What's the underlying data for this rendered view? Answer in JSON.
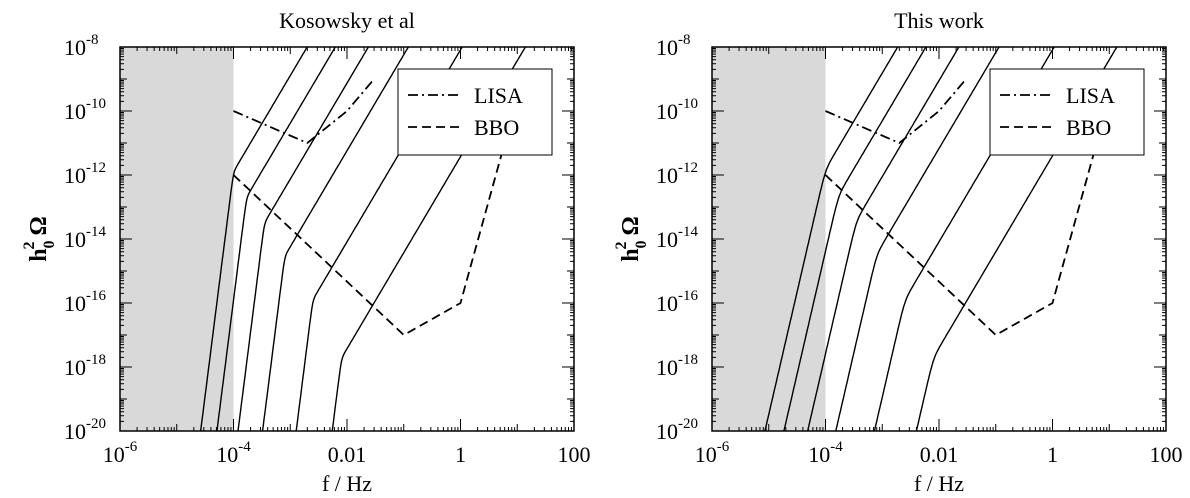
{
  "chart_data": [
    {
      "type": "line",
      "title": "Kosowsky et al",
      "xlabel": "f / Hz",
      "ylabel": "h_0^2 Ω",
      "xscale": "log",
      "yscale": "log",
      "xlim": [
        1e-06,
        100
      ],
      "ylim": [
        1e-20,
        1e-08
      ],
      "x_tick_labels": [
        {
          "base": "10",
          "exp": "-6"
        },
        {
          "base": "10",
          "exp": "-4"
        },
        {
          "base": "0.01",
          "exp": ""
        },
        {
          "base": "1",
          "exp": ""
        },
        {
          "base": "100",
          "exp": ""
        }
      ],
      "y_tick_labels": [
        {
          "base": "10",
          "exp": "-20"
        },
        {
          "base": "10",
          "exp": "-18"
        },
        {
          "base": "10",
          "exp": "-16"
        },
        {
          "base": "10",
          "exp": "-14"
        },
        {
          "base": "10",
          "exp": "-12"
        },
        {
          "base": "10",
          "exp": "-10"
        },
        {
          "base": "10",
          "exp": "-8"
        }
      ],
      "shaded_region": {
        "x": [
          1e-06,
          0.0001
        ],
        "color": "#d9d9d9"
      },
      "legend": {
        "position": "top-right",
        "entries": [
          {
            "label": "LISA",
            "dash": "dashdot"
          },
          {
            "label": "BBO",
            "dash": "dashed"
          }
        ]
      },
      "sensitivity_curves": [
        {
          "name": "LISA",
          "dash": "dashdot",
          "points": [
            [
              0.0001,
              1e-10
            ],
            [
              0.002,
              1e-11
            ],
            [
              0.01,
              1e-10
            ],
            [
              0.03,
              1e-09
            ]
          ]
        },
        {
          "name": "BBO",
          "dash": "dashed",
          "points": [
            [
              0.0001,
              1e-12
            ],
            [
              0.1,
              1e-17
            ],
            [
              1,
              1e-16
            ],
            [
              6,
              1e-11
            ]
          ]
        }
      ],
      "spectra": {
        "low_slope": 3,
        "high_slope": -8,
        "knee_width": 0.35,
        "peaks": [
          {
            "f": 0.0001,
            "amp": 1e-12
          },
          {
            "f": 0.00017,
            "amp": 1.6e-13
          },
          {
            "f": 0.00035,
            "amp": 2.5e-14
          },
          {
            "f": 0.0008,
            "amp": 2.3e-15
          },
          {
            "f": 0.0025,
            "amp": 1e-16
          },
          {
            "f": 0.008,
            "amp": 1.5e-18
          }
        ]
      }
    },
    {
      "type": "line",
      "title": "This work",
      "xlabel": "f / Hz",
      "ylabel": "h_0^2 Ω",
      "xscale": "log",
      "yscale": "log",
      "xlim": [
        1e-06,
        100
      ],
      "ylim": [
        1e-20,
        1e-08
      ],
      "x_tick_labels": [
        {
          "base": "10",
          "exp": "-6"
        },
        {
          "base": "10",
          "exp": "-4"
        },
        {
          "base": "0.01",
          "exp": ""
        },
        {
          "base": "1",
          "exp": ""
        },
        {
          "base": "100",
          "exp": ""
        }
      ],
      "y_tick_labels": [
        {
          "base": "10",
          "exp": "-20"
        },
        {
          "base": "10",
          "exp": "-18"
        },
        {
          "base": "10",
          "exp": "-16"
        },
        {
          "base": "10",
          "exp": "-14"
        },
        {
          "base": "10",
          "exp": "-12"
        },
        {
          "base": "10",
          "exp": "-10"
        },
        {
          "base": "10",
          "exp": "-8"
        }
      ],
      "shaded_region": {
        "x": [
          1e-06,
          0.0001
        ],
        "color": "#d9d9d9"
      },
      "legend": {
        "position": "top-right",
        "entries": [
          {
            "label": "LISA",
            "dash": "dashdot"
          },
          {
            "label": "BBO",
            "dash": "dashed"
          }
        ]
      },
      "sensitivity_curves": [
        {
          "name": "LISA",
          "dash": "dashdot",
          "points": [
            [
              0.0001,
              1e-10
            ],
            [
              0.002,
              1e-11
            ],
            [
              0.01,
              1e-10
            ],
            [
              0.03,
              1e-09
            ]
          ]
        },
        {
          "name": "BBO",
          "dash": "dashed",
          "points": [
            [
              0.0001,
              1e-12
            ],
            [
              0.1,
              1e-17
            ],
            [
              1,
              1e-16
            ],
            [
              6,
              1e-11
            ]
          ]
        }
      ],
      "spectra": {
        "low_slope": 3,
        "high_slope": -1.667,
        "knee_width": 0.35,
        "peaks": [
          {
            "f": 0.0001,
            "amp": 1.2e-12
          },
          {
            "f": 0.00017,
            "amp": 1.9e-13
          },
          {
            "f": 0.00035,
            "amp": 3e-14
          },
          {
            "f": 0.0008,
            "amp": 2.7e-15
          },
          {
            "f": 0.0025,
            "amp": 1e-16
          },
          {
            "f": 0.008,
            "amp": 1.6e-18
          }
        ]
      }
    }
  ]
}
